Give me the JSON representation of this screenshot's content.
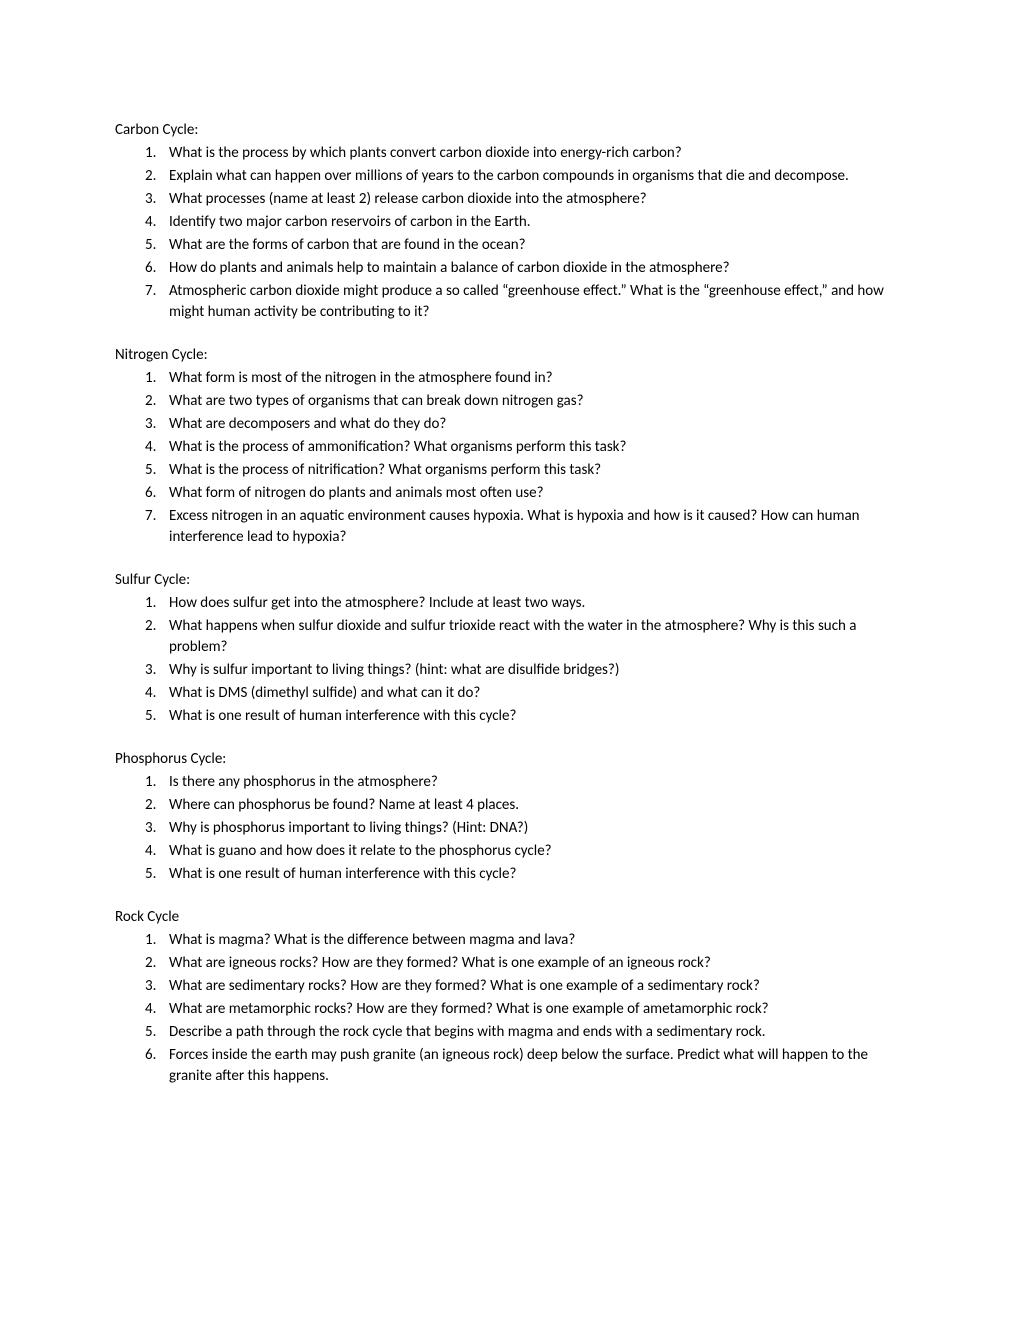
{
  "sections": [
    {
      "title": "Carbon Cycle:",
      "questions": [
        "What is the process by which plants convert carbon dioxide into energy-rich carbon?",
        "Explain what can happen over millions of years to the carbon compounds in organisms that die and decompose.",
        "What processes (name at least 2) release carbon dioxide into the atmosphere?",
        "Identify two major carbon reservoirs of carbon in the Earth.",
        "What are the forms of carbon that are found in the ocean?",
        "How do plants and animals help to maintain a balance of carbon dioxide in the atmosphere?",
        "Atmospheric carbon dioxide might produce a so called “greenhouse effect.”  What is the “greenhouse effect,” and how might human activity be contributing to it?"
      ]
    },
    {
      "title": "Nitrogen Cycle:",
      "questions": [
        "What form is most of the nitrogen in the atmosphere found in?",
        "What are two types of organisms that can break down nitrogen gas?",
        "What are decomposers and what do they do?",
        "What is the process of ammonification?  What organisms perform this task?",
        "What is the process of nitrification?  What organisms perform this task?",
        "What form of nitrogen do plants and animals most often use?",
        "Excess nitrogen in an aquatic environment causes hypoxia.  What is hypoxia and how is it caused?  How can human interference lead to hypoxia?"
      ]
    },
    {
      "title": "Sulfur Cycle:",
      "questions": [
        "How does sulfur get into the atmosphere?  Include at least two ways.",
        "What happens when sulfur dioxide and sulfur trioxide react with the water in the atmosphere?  Why is this such a problem?",
        "Why is sulfur important to living things?  (hint: what are disulfide bridges?)",
        "What is DMS (dimethyl sulfide) and what can it do?",
        "What is one result of human interference with this cycle?"
      ]
    },
    {
      "title": "Phosphorus Cycle:",
      "questions": [
        "Is there any phosphorus in the atmosphere?",
        "Where can phosphorus be found?  Name at least 4 places.",
        "Why is phosphorus important to living things?  (Hint: DNA?)",
        "What is guano and how does it relate to the phosphorus cycle?",
        "What is one result of human interference with this cycle?"
      ]
    },
    {
      "title": "Rock Cycle",
      "questions": [
        "What is magma?  What is the difference between magma and lava?",
        "What are igneous rocks?  How are they formed?  What is one example of an igneous rock?",
        "What are sedimentary rocks?  How are they formed?  What is one example of a sedimentary rock?",
        "What are metamorphic rocks?  How are they formed?  What is one example of ametamorphic rock?",
        "Describe a path through the rock cycle that begins with magma and ends with a sedimentary rock.",
        "Forces inside the earth may push granite (an igneous rock) deep below the surface.  Predict what will happen to the granite after this happens."
      ]
    }
  ]
}
